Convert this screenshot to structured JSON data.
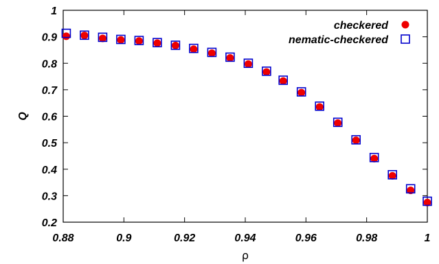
{
  "chart_data": {
    "type": "scatter",
    "xlabel": "ρ",
    "ylabel": "Q",
    "xlim": [
      0.88,
      1.0
    ],
    "ylim": [
      0.2,
      1.0
    ],
    "xticks": [
      0.88,
      0.9,
      0.92,
      0.94,
      0.96,
      0.98,
      1.0
    ],
    "xtick_labels": [
      "0.88",
      "0.9",
      "0.92",
      "0.94",
      "0.96",
      "0.98",
      "1"
    ],
    "yticks": [
      0.2,
      0.3,
      0.4,
      0.5,
      0.6,
      0.7,
      0.8,
      0.9,
      1.0
    ],
    "ytick_labels": [
      "0.2",
      "0.3",
      "0.4",
      "0.5",
      "0.6",
      "0.7",
      "0.8",
      "0.9",
      "1"
    ],
    "grid": false,
    "legend_position": "top-right",
    "series": [
      {
        "name": "checkered",
        "marker": "filled-circle",
        "color": "#ee0000",
        "points": [
          [
            0.881,
            0.902
          ],
          [
            0.887,
            0.905
          ],
          [
            0.893,
            0.894
          ],
          [
            0.899,
            0.888
          ],
          [
            0.905,
            0.884
          ],
          [
            0.911,
            0.876
          ],
          [
            0.917,
            0.867
          ],
          [
            0.923,
            0.853
          ],
          [
            0.929,
            0.838
          ],
          [
            0.935,
            0.82
          ],
          [
            0.941,
            0.797
          ],
          [
            0.947,
            0.767
          ],
          [
            0.9525,
            0.733
          ],
          [
            0.9585,
            0.689
          ],
          [
            0.9645,
            0.635
          ],
          [
            0.9705,
            0.574
          ],
          [
            0.9765,
            0.509
          ],
          [
            0.9825,
            0.44
          ],
          [
            0.9885,
            0.375
          ],
          [
            0.9945,
            0.32
          ],
          [
            1.0,
            0.274
          ]
        ]
      },
      {
        "name": "nematic-checkered",
        "marker": "open-square",
        "color": "#0000cc",
        "points": [
          [
            0.881,
            0.913
          ],
          [
            0.887,
            0.906
          ],
          [
            0.893,
            0.898
          ],
          [
            0.899,
            0.89
          ],
          [
            0.905,
            0.886
          ],
          [
            0.911,
            0.878
          ],
          [
            0.917,
            0.868
          ],
          [
            0.923,
            0.856
          ],
          [
            0.929,
            0.841
          ],
          [
            0.935,
            0.823
          ],
          [
            0.941,
            0.8
          ],
          [
            0.947,
            0.77
          ],
          [
            0.9525,
            0.736
          ],
          [
            0.9585,
            0.692
          ],
          [
            0.9645,
            0.638
          ],
          [
            0.9705,
            0.577
          ],
          [
            0.9765,
            0.511
          ],
          [
            0.9825,
            0.444
          ],
          [
            0.9885,
            0.379
          ],
          [
            0.9945,
            0.326
          ],
          [
            1.0,
            0.279
          ]
        ]
      }
    ]
  }
}
